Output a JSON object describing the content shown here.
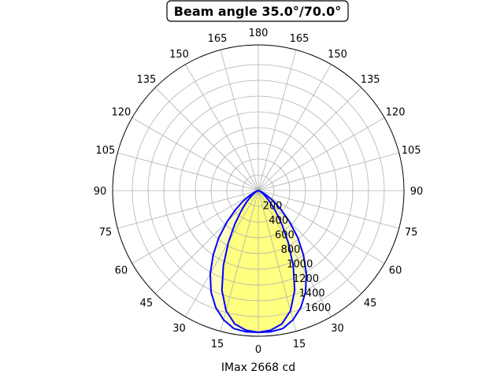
{
  "chart_data": {
    "type": "polar",
    "title": "Beam angle 35.0°/70.0°",
    "xlabel": "IMax 2668 cd",
    "r_max": 1850,
    "r_ticks": [
      200,
      400,
      600,
      800,
      1000,
      1200,
      1400,
      1600
    ],
    "r_tick_labels": [
      "200",
      "400",
      "600",
      "800",
      "1000",
      "1200",
      "1400",
      "1600"
    ],
    "angle_tick_labels": [
      "0",
      "15",
      "30",
      "45",
      "60",
      "75",
      "90",
      "105",
      "120",
      "135",
      "150",
      "165",
      "180",
      "165",
      "150",
      "135",
      "120",
      "105",
      "90",
      "75",
      "60",
      "45",
      "30",
      "15"
    ],
    "grid": true,
    "series": [
      {
        "role": "inner",
        "color": "#0000ff",
        "fill": "#ffff80",
        "angles": [
          0,
          5,
          10,
          15,
          20,
          25,
          30,
          35,
          40,
          45,
          50,
          55,
          60,
          65,
          70,
          75,
          80,
          85,
          90
        ],
        "values": [
          1800,
          1780,
          1720,
          1580,
          1350,
          1050,
          760,
          520,
          340,
          220,
          140,
          90,
          55,
          30,
          15,
          6,
          2,
          0,
          0
        ]
      },
      {
        "role": "outer",
        "color": "#0000ff",
        "fill": "#ffffc0",
        "angles": [
          0,
          5,
          10,
          15,
          20,
          25,
          30,
          35,
          40,
          45,
          50,
          55,
          60,
          65,
          70,
          75,
          80,
          85,
          90
        ],
        "values": [
          1800,
          1800,
          1780,
          1700,
          1580,
          1420,
          1220,
          1000,
          780,
          560,
          380,
          240,
          130,
          60,
          20,
          5,
          1,
          0,
          0
        ]
      }
    ]
  }
}
